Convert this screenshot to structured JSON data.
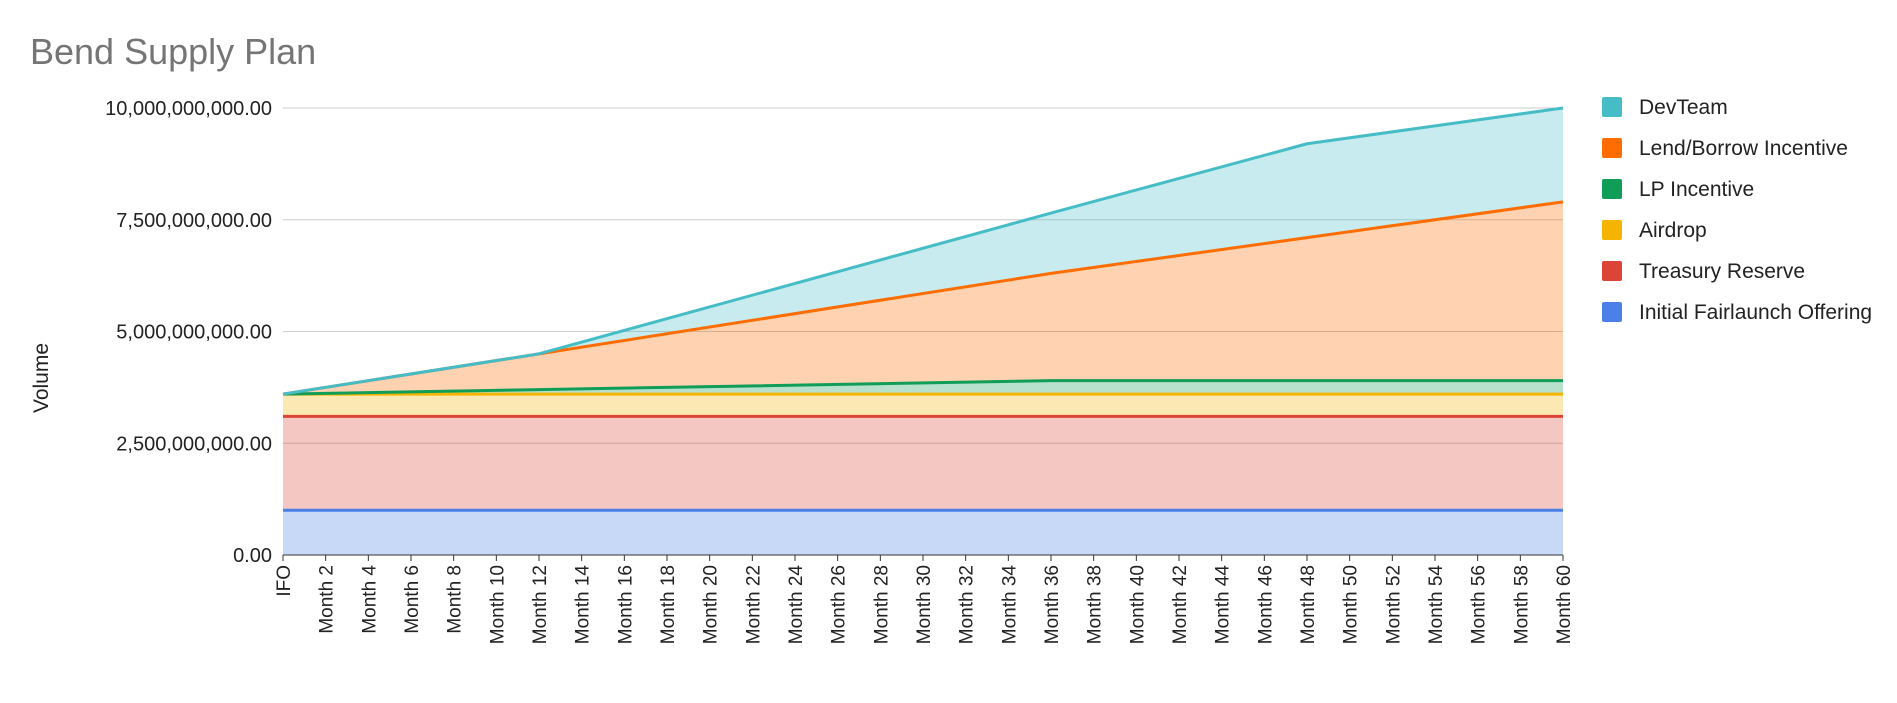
{
  "chart_data": {
    "type": "area",
    "stacked": true,
    "title": "Bend Supply Plan",
    "xlabel": "",
    "ylabel": "Volume",
    "ylim": [
      0,
      10000000000
    ],
    "y_ticks": [
      "0.00",
      "2,500,000,000.00",
      "5,000,000,000.00",
      "7,500,000,000.00",
      "10,000,000,000.00"
    ],
    "y_tick_values": [
      0,
      2500000000,
      5000000000,
      7500000000,
      10000000000
    ],
    "x_tick_labels": [
      "IFO",
      "Month 2",
      "Month 4",
      "Month 6",
      "Month 8",
      "Month 10",
      "Month 12",
      "Month 14",
      "Month 16",
      "Month 18",
      "Month 20",
      "Month 22",
      "Month 24",
      "Month 26",
      "Month 28",
      "Month 30",
      "Month 32",
      "Month 34",
      "Month 36",
      "Month 38",
      "Month 40",
      "Month 42",
      "Month 44",
      "Month 46",
      "Month 48",
      "Month 50",
      "Month 52",
      "Month 54",
      "Month 56",
      "Month 58",
      "Month 60"
    ],
    "x_months": [
      0,
      2,
      4,
      6,
      8,
      10,
      12,
      14,
      16,
      18,
      20,
      22,
      24,
      26,
      28,
      30,
      32,
      34,
      36,
      38,
      40,
      42,
      44,
      46,
      48,
      50,
      52,
      54,
      56,
      58,
      60
    ],
    "grid": true,
    "legend_position": "right",
    "series": [
      {
        "name": "Initial Fairlaunch Offering",
        "color": "#4a80e8",
        "points": [
          [
            0,
            1000000000
          ],
          [
            60,
            1000000000
          ]
        ]
      },
      {
        "name": "Treasury Reserve",
        "color": "#db4437",
        "points": [
          [
            0,
            2100000000
          ],
          [
            60,
            2100000000
          ]
        ]
      },
      {
        "name": "Airdrop",
        "color": "#f4b400",
        "points": [
          [
            0,
            500000000
          ],
          [
            60,
            500000000
          ]
        ]
      },
      {
        "name": "LP Incentive",
        "color": "#0f9d58",
        "points": [
          [
            0,
            0
          ],
          [
            36,
            300000000
          ],
          [
            60,
            300000000
          ]
        ]
      },
      {
        "name": "Lend/Borrow Incentive",
        "color": "#ff6d01",
        "points": [
          [
            0,
            0
          ],
          [
            12,
            800000000
          ],
          [
            36,
            2400000000
          ],
          [
            48,
            3200000000
          ],
          [
            60,
            4000000000
          ]
        ]
      },
      {
        "name": "DevTeam",
        "color": "#46bdc6",
        "points": [
          [
            0,
            0
          ],
          [
            12,
            0
          ],
          [
            36,
            1350000000
          ],
          [
            48,
            2100000000
          ],
          [
            60,
            2100000000
          ]
        ]
      }
    ]
  }
}
